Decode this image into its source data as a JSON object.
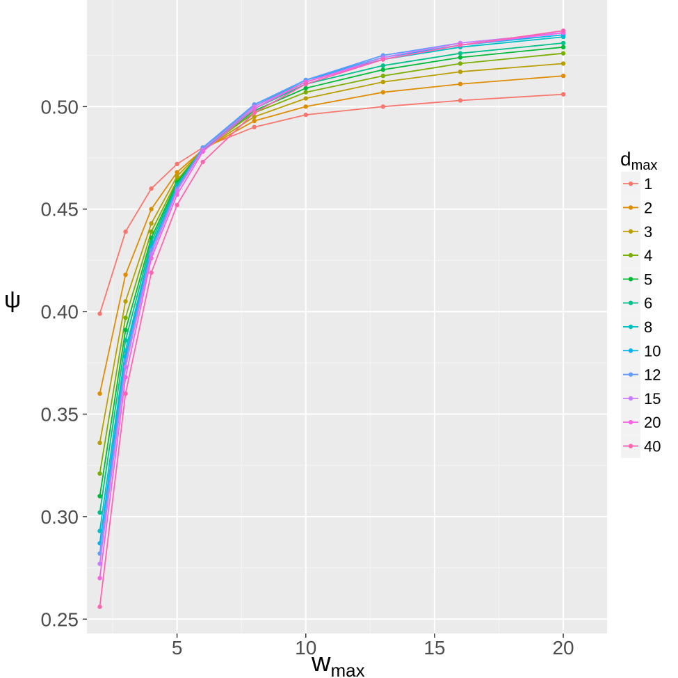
{
  "chart_data": {
    "type": "line",
    "xlabel": {
      "main": "w",
      "sub": "max"
    },
    "ylabel": "ψ",
    "xlim": [
      1.5,
      21.7
    ],
    "ylim": [
      0.243,
      0.552
    ],
    "x_ticks": [
      5,
      10,
      15,
      20
    ],
    "y_ticks": [
      0.25,
      0.3,
      0.35,
      0.4,
      0.45,
      0.5
    ],
    "y_tick_labels": [
      "0.25",
      "0.30",
      "0.35",
      "0.40",
      "0.45",
      "0.50"
    ],
    "grid": true,
    "legend": {
      "title_main": "d",
      "title_sub": "max",
      "placement": "right"
    },
    "x": [
      2,
      3,
      4,
      5,
      6,
      8,
      10,
      13,
      16,
      20
    ],
    "series": [
      {
        "name": "1",
        "color": "#F8766D",
        "values": [
          0.399,
          0.439,
          0.46,
          0.472,
          0.48,
          0.49,
          0.496,
          0.5,
          0.503,
          0.506
        ]
      },
      {
        "name": "2",
        "color": "#DE8C00",
        "values": [
          0.36,
          0.418,
          0.45,
          0.468,
          0.479,
          0.493,
          0.5,
          0.507,
          0.511,
          0.515
        ]
      },
      {
        "name": "3",
        "color": "#B79F00",
        "values": [
          0.336,
          0.405,
          0.443,
          0.466,
          0.479,
          0.495,
          0.504,
          0.512,
          0.517,
          0.521
        ]
      },
      {
        "name": "4",
        "color": "#7CAE00",
        "values": [
          0.321,
          0.397,
          0.439,
          0.464,
          0.479,
          0.497,
          0.507,
          0.515,
          0.521,
          0.526
        ]
      },
      {
        "name": "5",
        "color": "#00BA38",
        "values": [
          0.31,
          0.391,
          0.436,
          0.463,
          0.479,
          0.498,
          0.509,
          0.518,
          0.524,
          0.529
        ]
      },
      {
        "name": "6",
        "color": "#00C08B",
        "values": [
          0.302,
          0.386,
          0.434,
          0.462,
          0.479,
          0.499,
          0.511,
          0.52,
          0.526,
          0.531
        ]
      },
      {
        "name": "8",
        "color": "#00BFC4",
        "values": [
          0.293,
          0.381,
          0.432,
          0.461,
          0.48,
          0.5,
          0.513,
          0.523,
          0.529,
          0.534
        ]
      },
      {
        "name": "10",
        "color": "#00B4F0",
        "values": [
          0.287,
          0.378,
          0.431,
          0.46,
          0.48,
          0.501,
          0.513,
          0.524,
          0.53,
          0.535
        ]
      },
      {
        "name": "12",
        "color": "#619CFF",
        "values": [
          0.282,
          0.376,
          0.43,
          0.46,
          0.48,
          0.501,
          0.513,
          0.525,
          0.531,
          0.536
        ]
      },
      {
        "name": "15",
        "color": "#C77CFF",
        "values": [
          0.277,
          0.373,
          0.428,
          0.459,
          0.479,
          0.5,
          0.512,
          0.524,
          0.531,
          0.536
        ]
      },
      {
        "name": "20",
        "color": "#F564E3",
        "values": [
          0.27,
          0.368,
          0.426,
          0.457,
          0.478,
          0.499,
          0.512,
          0.523,
          0.53,
          0.536
        ]
      },
      {
        "name": "40",
        "color": "#FF64B0",
        "values": [
          0.256,
          0.36,
          0.419,
          0.452,
          0.473,
          0.497,
          0.511,
          0.523,
          0.53,
          0.537
        ]
      }
    ]
  }
}
